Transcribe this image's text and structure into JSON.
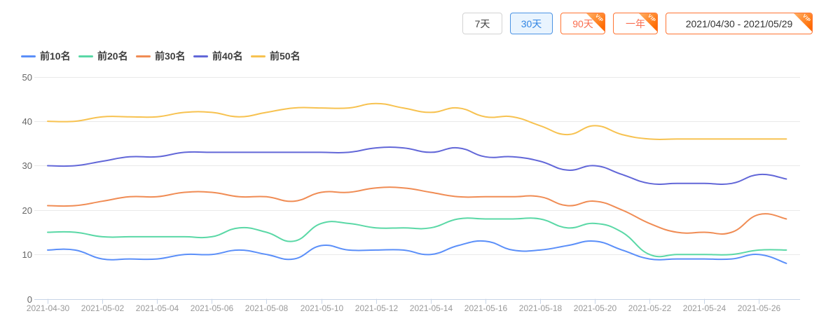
{
  "toolbar": {
    "vip_label": "VIP",
    "buttons": [
      {
        "id": "range-7d",
        "label": "7天",
        "selected": false,
        "vip": false,
        "date": false
      },
      {
        "id": "range-30d",
        "label": "30天",
        "selected": true,
        "vip": false,
        "date": false
      },
      {
        "id": "range-90d",
        "label": "90天",
        "selected": false,
        "vip": true,
        "date": false
      },
      {
        "id": "range-1y",
        "label": "一年",
        "selected": false,
        "vip": true,
        "date": false
      },
      {
        "id": "date-range",
        "label": "2021/04/30 - 2021/05/29",
        "selected": false,
        "vip": true,
        "date": true
      }
    ]
  },
  "legend": {
    "items": [
      {
        "id": "top10",
        "label": "前10名",
        "color": "#5B8FF9"
      },
      {
        "id": "top20",
        "label": "前20名",
        "color": "#5AD8A6"
      },
      {
        "id": "top30",
        "label": "前30名",
        "color": "#F08C54"
      },
      {
        "id": "top40",
        "label": "前40名",
        "color": "#6267D8"
      },
      {
        "id": "top50",
        "label": "前50名",
        "color": "#F7C250"
      }
    ]
  },
  "chart_data": {
    "type": "line",
    "smooth": true,
    "grid": "horizontal",
    "legend_position": "top-left",
    "ylim": [
      0,
      50
    ],
    "y_ticks": [
      0,
      10,
      20,
      30,
      40,
      50
    ],
    "x_tick_interval": 2,
    "x": [
      "2021-04-30",
      "2021-05-01",
      "2021-05-02",
      "2021-05-03",
      "2021-05-04",
      "2021-05-05",
      "2021-05-06",
      "2021-05-07",
      "2021-05-08",
      "2021-05-09",
      "2021-05-10",
      "2021-05-11",
      "2021-05-12",
      "2021-05-13",
      "2021-05-14",
      "2021-05-15",
      "2021-05-16",
      "2021-05-17",
      "2021-05-18",
      "2021-05-19",
      "2021-05-20",
      "2021-05-21",
      "2021-05-22",
      "2021-05-23",
      "2021-05-24",
      "2021-05-25",
      "2021-05-26",
      "2021-05-27"
    ],
    "series": [
      {
        "id": "top10",
        "name": "前10名",
        "color": "#5B8FF9",
        "values": [
          11,
          11,
          9,
          9,
          9,
          10,
          10,
          11,
          10,
          9,
          12,
          11,
          11,
          11,
          10,
          12,
          13,
          11,
          11,
          12,
          13,
          11,
          9,
          9,
          9,
          9,
          10,
          8
        ]
      },
      {
        "id": "top20",
        "name": "前20名",
        "color": "#5AD8A6",
        "values": [
          15,
          15,
          14,
          14,
          14,
          14,
          14,
          16,
          15,
          13,
          17,
          17,
          16,
          16,
          16,
          18,
          18,
          18,
          18,
          16,
          17,
          15,
          10,
          10,
          10,
          10,
          11,
          11
        ]
      },
      {
        "id": "top30",
        "name": "前30名",
        "color": "#F08C54",
        "values": [
          21,
          21,
          22,
          23,
          23,
          24,
          24,
          23,
          23,
          22,
          24,
          24,
          25,
          25,
          24,
          23,
          23,
          23,
          23,
          21,
          22,
          20,
          17,
          15,
          15,
          15,
          19,
          18
        ]
      },
      {
        "id": "top40",
        "name": "前40名",
        "color": "#6267D8",
        "values": [
          30,
          30,
          31,
          32,
          32,
          33,
          33,
          33,
          33,
          33,
          33,
          33,
          34,
          34,
          33,
          34,
          32,
          32,
          31,
          29,
          30,
          28,
          26,
          26,
          26,
          26,
          28,
          27
        ]
      },
      {
        "id": "top50",
        "name": "前50名",
        "color": "#F7C250",
        "values": [
          40,
          40,
          41,
          41,
          41,
          42,
          42,
          41,
          42,
          43,
          43,
          43,
          44,
          43,
          42,
          43,
          41,
          41,
          39,
          37,
          39,
          37,
          36,
          36,
          36,
          36,
          36,
          36
        ]
      }
    ],
    "colors": {
      "grid": "#E9E9E9",
      "axis_line": "#C7D4E6",
      "x_label": "#999999",
      "y_label": "#666666"
    }
  }
}
